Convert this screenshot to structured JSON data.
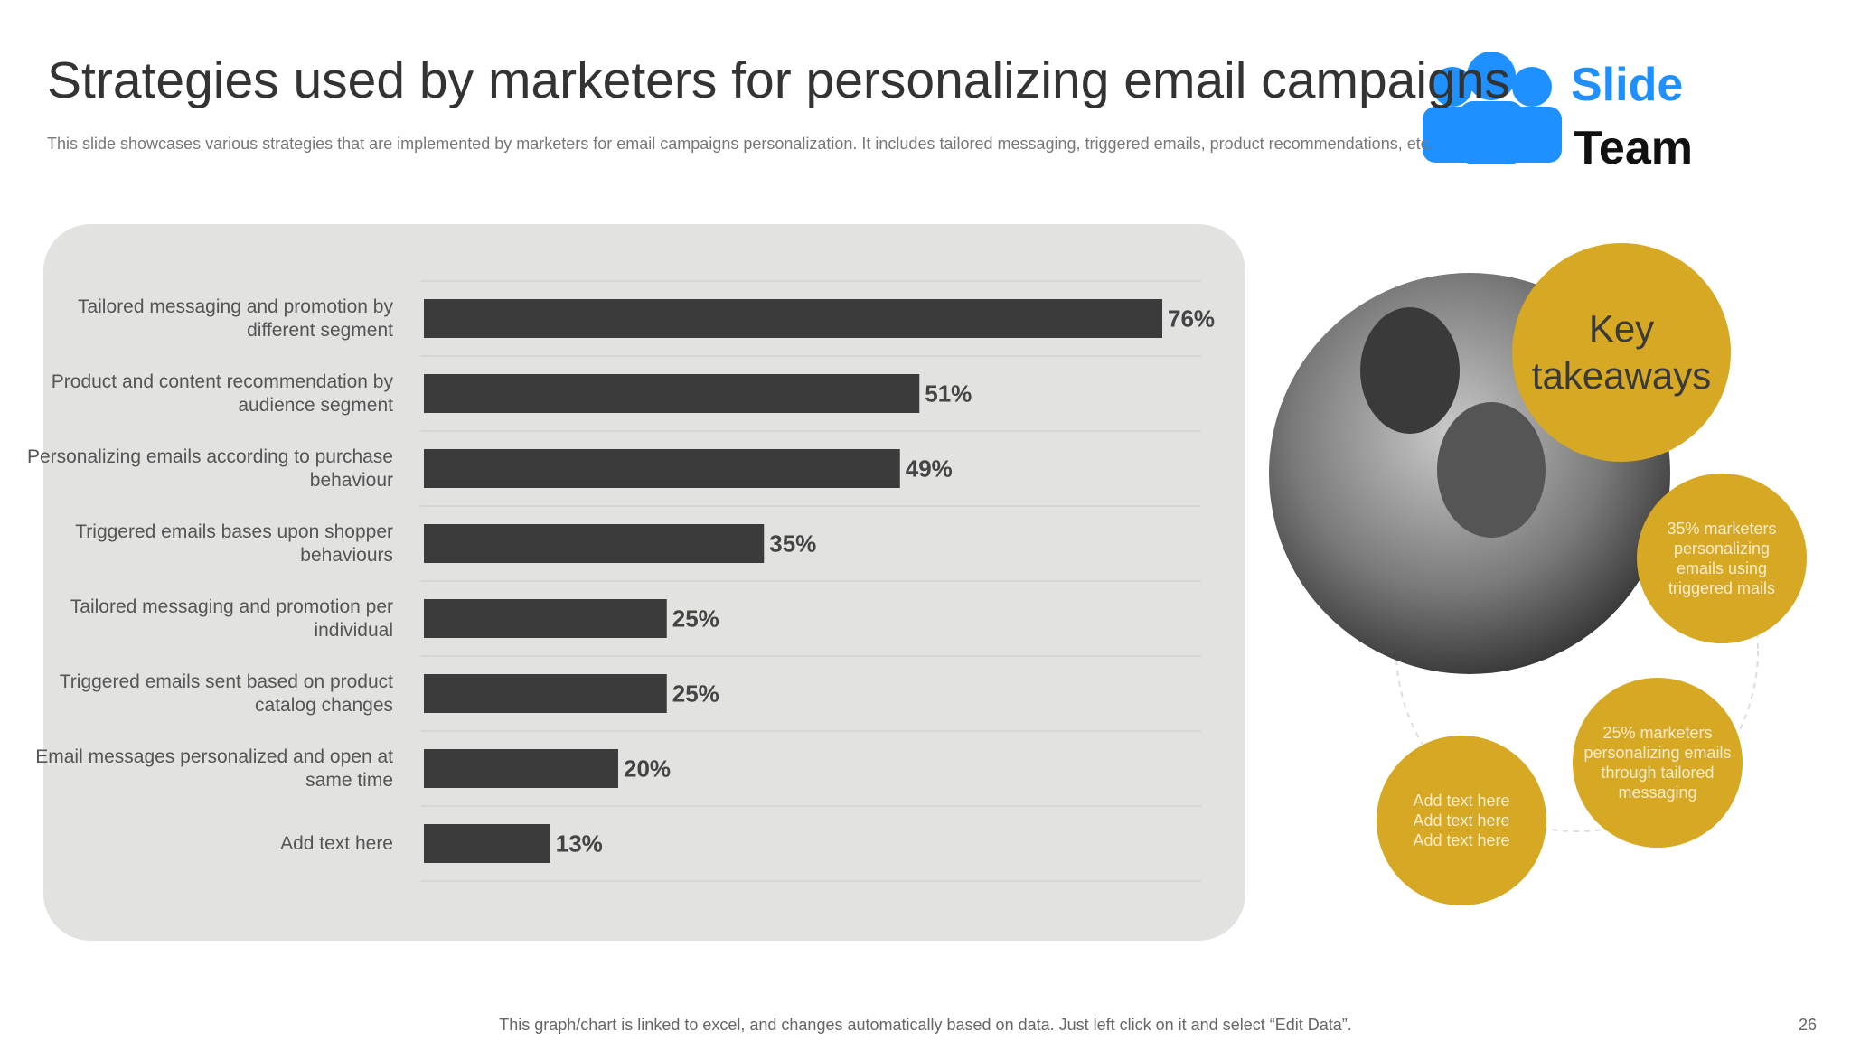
{
  "slide": {
    "title": "Strategies used by marketers for personalizing email campaigns",
    "subtitle": "This slide showcases various strategies that are implemented by marketers for email campaigns personalization. It includes tailored messaging, triggered emails, product recommendations, etc.",
    "footer": "This graph/chart is linked to excel,  and changes automatically based on data. Just left click on it and select “Edit Data”.",
    "page_number": "26",
    "logo": [
      "Slide",
      "Team"
    ]
  },
  "takeaways": {
    "title": "Key\ntakeaways",
    "items": [
      "35% marketers personalizing emails using triggered mails",
      "25% marketers personalizing emails through tailored messaging",
      "Add text here\nAdd text here\nAdd text here"
    ]
  },
  "chart_data": {
    "type": "bar",
    "orientation": "horizontal",
    "color": "#3b3b3b",
    "categories": [
      "Tailored  messaging and\npromotion  by different  segment",
      "Product and content recommendation\nby audience segment",
      "Personalizing emails according\nto purchase behaviour",
      "Triggered  emails bases upon\nshopper behaviours",
      "Tailored  messaging and\npromotion  per individual",
      "Triggered  emails sent based on\nproduct catalog changes",
      "Email messages personalized\nand open at same time",
      "Add text here"
    ],
    "values": [
      76,
      51,
      49,
      35,
      25,
      25,
      20,
      13
    ],
    "value_labels": [
      "76%",
      "51%",
      "49%",
      "35%",
      "25%",
      "25%",
      "20%",
      "13%"
    ],
    "xlim": [
      0,
      80
    ]
  }
}
